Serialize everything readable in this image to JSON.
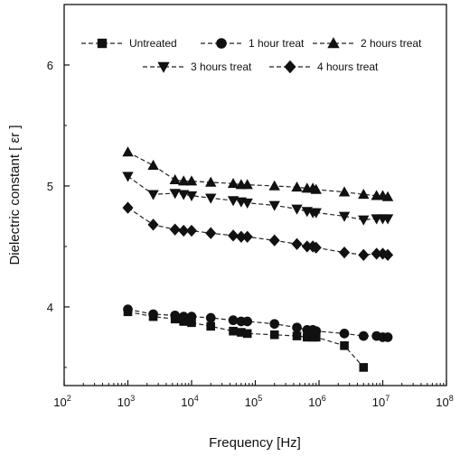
{
  "chart_data": {
    "type": "scatter",
    "title": "",
    "xlabel": "Frequency [Hz]",
    "ylabel": "Dielectric constant [ εr ]",
    "xscale": "log",
    "xlim": [
      100,
      100000000
    ],
    "ylim": [
      3.35,
      6.5
    ],
    "x_ticks": [
      {
        "value": 100,
        "base": "10",
        "exp": "2"
      },
      {
        "value": 1000,
        "base": "10",
        "exp": "3"
      },
      {
        "value": 10000,
        "base": "10",
        "exp": "4"
      },
      {
        "value": 100000,
        "base": "10",
        "exp": "5"
      },
      {
        "value": 1000000,
        "base": "10",
        "exp": "6"
      },
      {
        "value": 10000000,
        "base": "10",
        "exp": "7"
      },
      {
        "value": 100000000,
        "base": "10",
        "exp": "8"
      }
    ],
    "y_ticks": [
      {
        "value": 4,
        "label": "4"
      },
      {
        "value": 5,
        "label": "5"
      },
      {
        "value": 6,
        "label": "6"
      }
    ],
    "legend_position": "top",
    "grid": false,
    "line_style": "dashed",
    "series": [
      {
        "name": "Untreated",
        "marker": "square",
        "points": [
          [
            1000,
            3.96
          ],
          [
            2500,
            3.92
          ],
          [
            5500,
            3.9
          ],
          [
            7500,
            3.88
          ],
          [
            10000,
            3.87
          ],
          [
            20000,
            3.84
          ],
          [
            45000,
            3.8
          ],
          [
            60000,
            3.79
          ],
          [
            75000,
            3.78
          ],
          [
            200000,
            3.77
          ],
          [
            450000,
            3.76
          ],
          [
            650000,
            3.75
          ],
          [
            800000,
            3.75
          ],
          [
            900000,
            3.75
          ],
          [
            2500000,
            3.68
          ],
          [
            5000000,
            3.5
          ]
        ]
      },
      {
        "name": "1 hour treat",
        "marker": "circle",
        "points": [
          [
            1000,
            3.98
          ],
          [
            2500,
            3.94
          ],
          [
            5500,
            3.93
          ],
          [
            7500,
            3.92
          ],
          [
            10000,
            3.92
          ],
          [
            20000,
            3.91
          ],
          [
            45000,
            3.89
          ],
          [
            60000,
            3.88
          ],
          [
            75000,
            3.88
          ],
          [
            200000,
            3.86
          ],
          [
            450000,
            3.83
          ],
          [
            650000,
            3.81
          ],
          [
            800000,
            3.81
          ],
          [
            900000,
            3.8
          ],
          [
            2500000,
            3.78
          ],
          [
            5000000,
            3.76
          ],
          [
            8000000,
            3.76
          ],
          [
            10000000,
            3.75
          ],
          [
            12000000,
            3.75
          ]
        ]
      },
      {
        "name": "2 hours treat",
        "marker": "triangle-up",
        "points": [
          [
            1000,
            5.28
          ],
          [
            2500,
            5.17
          ],
          [
            5500,
            5.05
          ],
          [
            7500,
            5.04
          ],
          [
            10000,
            5.04
          ],
          [
            20000,
            5.03
          ],
          [
            45000,
            5.02
          ],
          [
            60000,
            5.01
          ],
          [
            75000,
            5.01
          ],
          [
            200000,
            5.0
          ],
          [
            450000,
            4.99
          ],
          [
            650000,
            4.98
          ],
          [
            800000,
            4.98
          ],
          [
            900000,
            4.97
          ],
          [
            2500000,
            4.95
          ],
          [
            5000000,
            4.93
          ],
          [
            8000000,
            4.92
          ],
          [
            10000000,
            4.92
          ],
          [
            12000000,
            4.91
          ]
        ]
      },
      {
        "name": "3 hours treat",
        "marker": "triangle-down",
        "points": [
          [
            1000,
            5.08
          ],
          [
            2500,
            4.93
          ],
          [
            5500,
            4.94
          ],
          [
            7500,
            4.93
          ],
          [
            10000,
            4.92
          ],
          [
            20000,
            4.9
          ],
          [
            45000,
            4.88
          ],
          [
            60000,
            4.87
          ],
          [
            75000,
            4.86
          ],
          [
            200000,
            4.84
          ],
          [
            450000,
            4.81
          ],
          [
            650000,
            4.79
          ],
          [
            800000,
            4.78
          ],
          [
            900000,
            4.78
          ],
          [
            2500000,
            4.75
          ],
          [
            5000000,
            4.72
          ],
          [
            8000000,
            4.73
          ],
          [
            10000000,
            4.73
          ],
          [
            12000000,
            4.73
          ]
        ]
      },
      {
        "name": "4 hours treat",
        "marker": "diamond",
        "points": [
          [
            1000,
            4.82
          ],
          [
            2500,
            4.68
          ],
          [
            5500,
            4.64
          ],
          [
            7500,
            4.63
          ],
          [
            10000,
            4.63
          ],
          [
            20000,
            4.61
          ],
          [
            45000,
            4.59
          ],
          [
            60000,
            4.58
          ],
          [
            75000,
            4.58
          ],
          [
            200000,
            4.55
          ],
          [
            450000,
            4.52
          ],
          [
            650000,
            4.5
          ],
          [
            800000,
            4.5
          ],
          [
            900000,
            4.49
          ],
          [
            2500000,
            4.45
          ],
          [
            5000000,
            4.43
          ],
          [
            8000000,
            4.44
          ],
          [
            10000000,
            4.44
          ],
          [
            12000000,
            4.43
          ]
        ]
      }
    ]
  }
}
